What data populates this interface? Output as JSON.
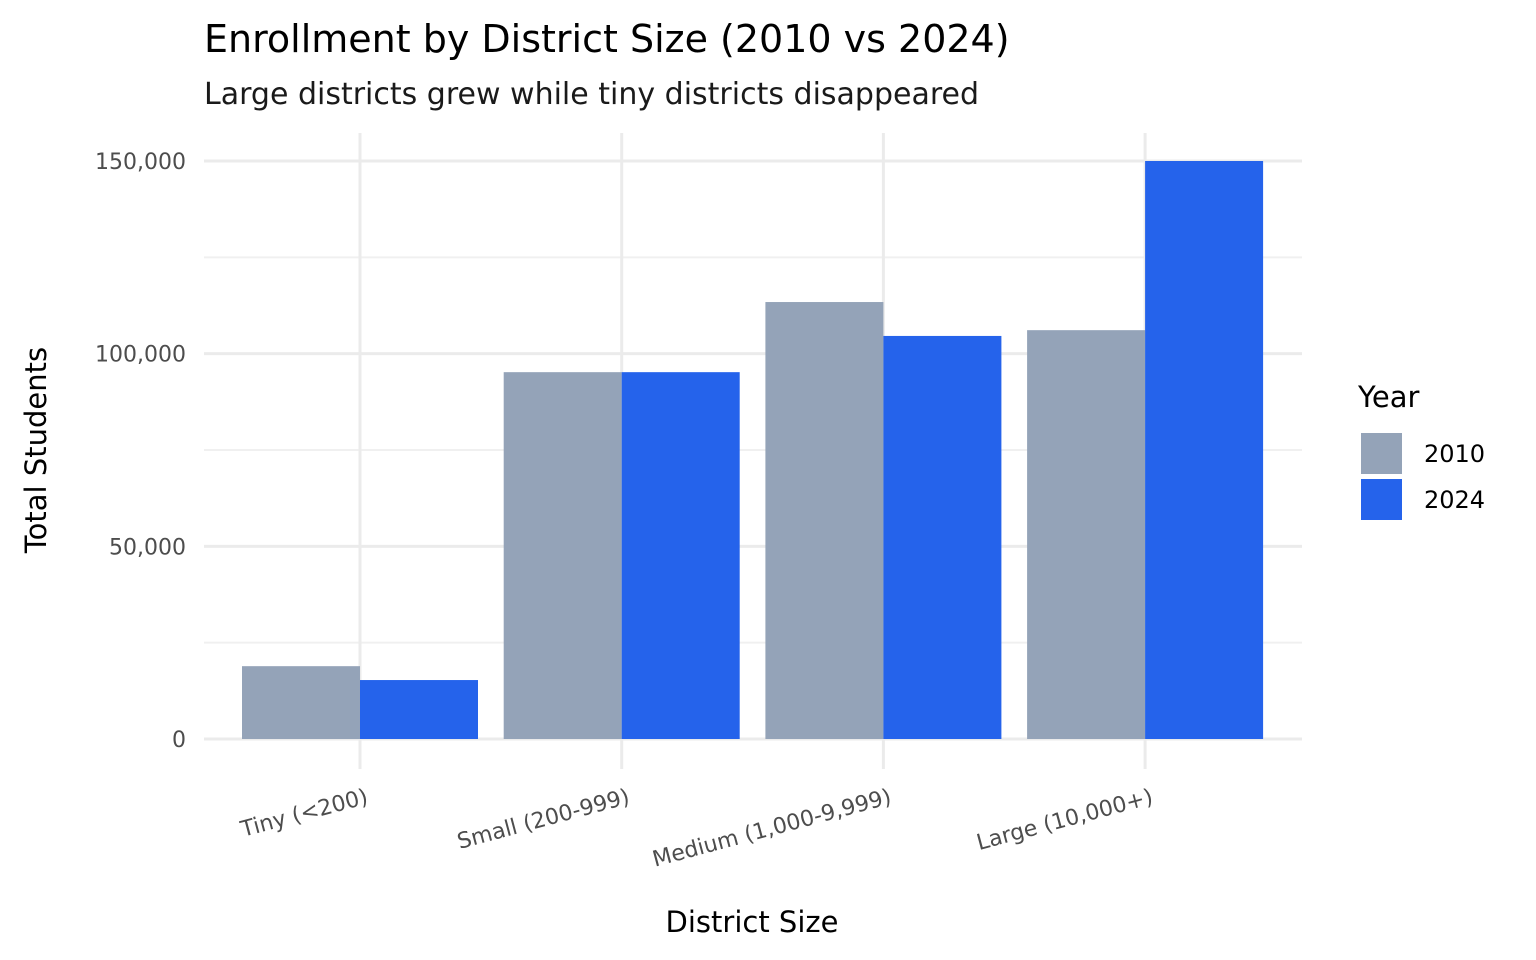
{
  "chart_data": {
    "type": "bar",
    "title": "Enrollment by District Size (2010 vs 2024)",
    "subtitle": "Large districts grew while tiny districts disappeared",
    "xlabel": "District Size",
    "ylabel": "Total Students",
    "categories": [
      "Tiny (<200)",
      "Small (200-999)",
      "Medium (1,000-9,999)",
      "Large (10,000+)"
    ],
    "series": [
      {
        "name": "2010",
        "color": "#94A3B8",
        "values": [
          18900,
          95200,
          113400,
          106100
        ]
      },
      {
        "name": "2024",
        "color": "#2563EB",
        "values": [
          15300,
          95200,
          104600,
          150000
        ]
      }
    ],
    "ylim": [
      0,
      157000
    ],
    "yticks": [
      0,
      50000,
      100000,
      150000
    ],
    "ytick_labels": [
      "0",
      "50,000",
      "100,000",
      "150,000"
    ],
    "grid": true,
    "legend": {
      "title": "Year",
      "position": "right",
      "entries": [
        "2010",
        "2024"
      ]
    }
  }
}
